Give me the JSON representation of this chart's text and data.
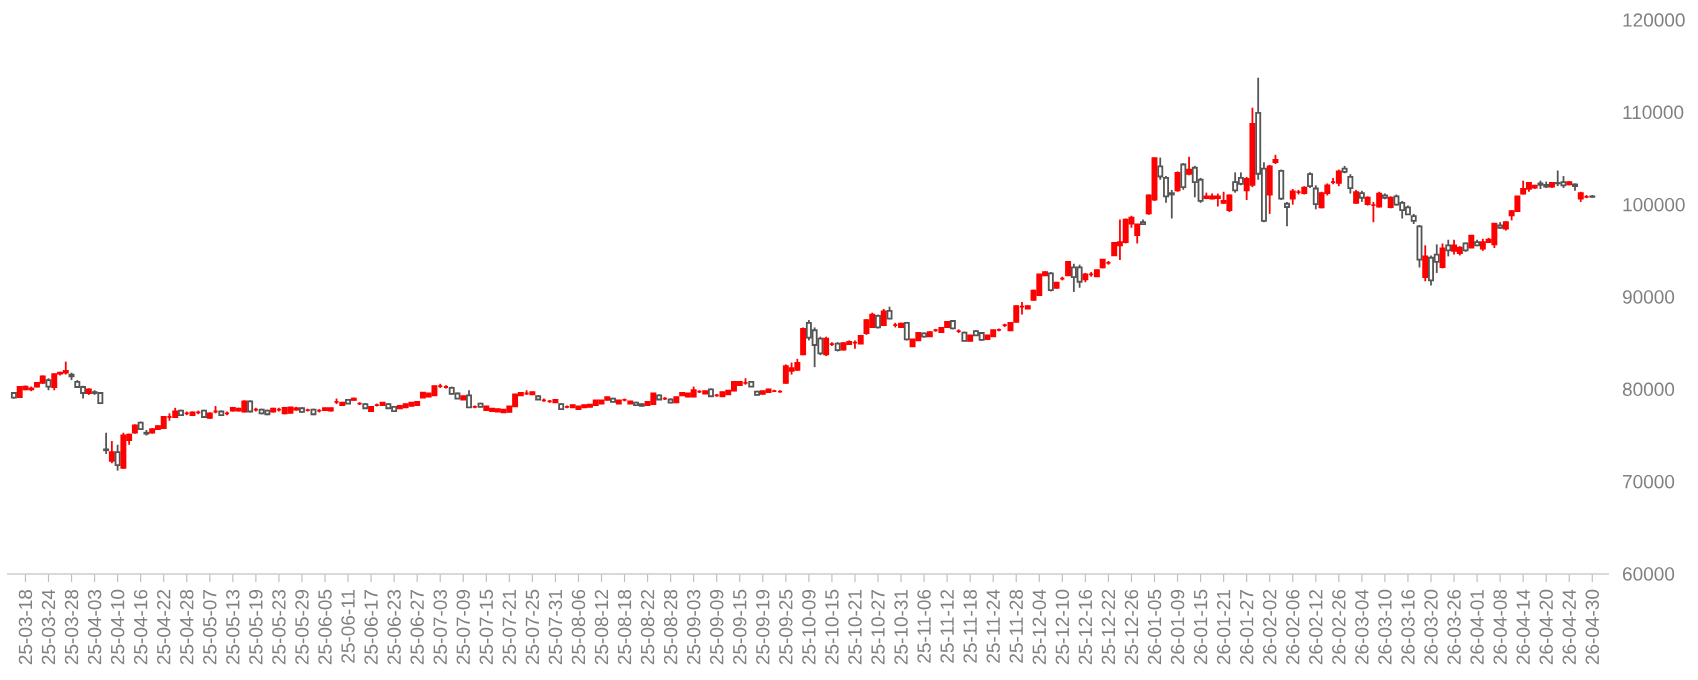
{
  "chart_data": {
    "type": "candlestick",
    "categories": [
      null,
      null,
      "25-03-18",
      null,
      null,
      null,
      "25-03-24",
      null,
      null,
      null,
      "25-03-28",
      null,
      null,
      null,
      "25-04-03",
      null,
      null,
      null,
      "25-04-10",
      null,
      null,
      null,
      "25-04-16",
      null,
      null,
      null,
      "25-04-22",
      null,
      null,
      null,
      "25-04-28",
      null,
      null,
      null,
      "25-05-07",
      null,
      null,
      null,
      "25-05-13",
      null,
      null,
      null,
      "25-05-19",
      null,
      null,
      null,
      "25-05-23",
      null,
      null,
      null,
      "25-05-29",
      null,
      null,
      null,
      "25-06-05",
      null,
      null,
      null,
      "25-06-11",
      null,
      null,
      null,
      "25-06-17",
      null,
      null,
      null,
      "25-06-23",
      null,
      null,
      null,
      "25-06-27",
      null,
      null,
      null,
      "25-07-03",
      null,
      null,
      null,
      "25-07-09",
      null,
      null,
      null,
      "25-07-15",
      null,
      null,
      null,
      "25-07-21",
      null,
      null,
      null,
      "25-07-25",
      null,
      null,
      null,
      "25-07-31",
      null,
      null,
      null,
      "25-08-06",
      null,
      null,
      null,
      "25-08-12",
      null,
      null,
      null,
      "25-08-18",
      null,
      null,
      null,
      "25-08-22",
      null,
      null,
      null,
      "25-08-28",
      null,
      null,
      null,
      "25-09-03",
      null,
      null,
      null,
      "25-09-09",
      null,
      null,
      null,
      "25-09-15",
      null,
      null,
      null,
      "25-09-19",
      null,
      null,
      null,
      "25-09-25",
      null,
      null,
      null,
      "25-10-09",
      null,
      null,
      null,
      "25-10-15",
      null,
      null,
      null,
      "25-10-21",
      null,
      null,
      null,
      "25-10-27",
      null,
      null,
      null,
      "25-10-31",
      null,
      null,
      null,
      "25-11-06",
      null,
      null,
      null,
      "25-11-12",
      null,
      null,
      null,
      "25-11-18",
      null,
      null,
      null,
      "25-11-24",
      null,
      null,
      null,
      "25-11-28",
      null,
      null,
      null,
      "25-12-04",
      null,
      null,
      null,
      "25-12-10",
      null,
      null,
      null,
      "25-12-16",
      null,
      null,
      null,
      "25-12-22",
      null,
      null,
      null,
      "25-12-26",
      null,
      null,
      null,
      "26-01-05",
      null,
      null,
      null,
      "26-01-09",
      null,
      null,
      null,
      "26-01-15",
      null,
      null,
      null,
      "26-01-21",
      null,
      null,
      null,
      "26-01-27",
      null,
      null,
      null,
      "26-02-02",
      null,
      null,
      null,
      "26-02-06",
      null,
      null,
      null,
      "26-02-12",
      null,
      null,
      null,
      "26-02-26",
      null,
      null,
      null,
      "26-03-04",
      null,
      null,
      null,
      "26-03-10",
      null,
      null,
      null,
      "26-03-16",
      null,
      null,
      null,
      "26-03-20",
      null,
      null,
      null,
      "26-03-26",
      null,
      null,
      null,
      "26-04-01",
      null,
      null,
      null,
      "26-04-08",
      null,
      null,
      null,
      "26-04-14",
      null,
      null,
      null,
      "26-04-20",
      null,
      null,
      null,
      "26-04-24",
      null,
      null,
      null,
      "26-04-30"
    ],
    "ohlc": [
      [
        79600,
        79700,
        79000,
        79100
      ],
      [
        79150,
        80300,
        79100,
        80250
      ],
      [
        80000,
        80400,
        79900,
        80300
      ],
      [
        80000,
        80300,
        79800,
        80100
      ],
      [
        80300,
        80800,
        80200,
        80700
      ],
      [
        80700,
        81500,
        80600,
        81400
      ],
      [
        81000,
        81200,
        79900,
        80300
      ],
      [
        80250,
        81700,
        79900,
        81650
      ],
      [
        81700,
        81900,
        81500,
        81800
      ],
      [
        81800,
        83000,
        81600,
        82000
      ],
      [
        81600,
        81800,
        81000,
        81400
      ],
      [
        80800,
        81000,
        80200,
        80250
      ],
      [
        80250,
        80400,
        79000,
        79600
      ],
      [
        79600,
        80100,
        79400,
        80000
      ],
      [
        79700,
        79900,
        79400,
        79600
      ],
      [
        79600,
        79700,
        78400,
        78500
      ],
      [
        73500,
        75300,
        73000,
        73400
      ],
      [
        72250,
        74400,
        72000,
        73200
      ],
      [
        73200,
        74000,
        71200,
        71800
      ],
      [
        71500,
        75300,
        71400,
        75000
      ],
      [
        74500,
        75200,
        74000,
        75100
      ],
      [
        75300,
        76200,
        75200,
        76100
      ],
      [
        76400,
        76500,
        75600,
        75700
      ],
      [
        75300,
        75600,
        75000,
        75200
      ],
      [
        75300,
        75800,
        75200,
        75700
      ],
      [
        75700,
        76100,
        75600,
        76000
      ],
      [
        75800,
        77100,
        75700,
        77000
      ],
      [
        77000,
        77400,
        76600,
        77000
      ],
      [
        77000,
        78000,
        76900,
        77600
      ],
      [
        77700,
        77800,
        77100,
        77200
      ],
      [
        77400,
        77600,
        77200,
        77400
      ],
      [
        77200,
        77600,
        77100,
        77500
      ],
      [
        77500,
        77700,
        77300,
        77500
      ],
      [
        77700,
        77800,
        76900,
        77000
      ],
      [
        76900,
        77500,
        76800,
        77400
      ],
      [
        77600,
        78200,
        77400,
        77600
      ],
      [
        77600,
        77700,
        77100,
        77200
      ],
      [
        77400,
        77600,
        77200,
        77400
      ],
      [
        77700,
        78100,
        77600,
        78000
      ],
      [
        77700,
        78000,
        77600,
        77900
      ],
      [
        77600,
        78800,
        77500,
        78700
      ],
      [
        78700,
        78800,
        77500,
        77600
      ],
      [
        77800,
        78000,
        77600,
        77800
      ],
      [
        77800,
        77900,
        77300,
        77400
      ],
      [
        77700,
        77800,
        77200,
        77300
      ],
      [
        77600,
        78000,
        77500,
        77900
      ],
      [
        77800,
        78000,
        77600,
        77800
      ],
      [
        77400,
        78100,
        77300,
        78000
      ],
      [
        77460,
        78100,
        77400,
        78040
      ],
      [
        77800,
        78100,
        77700,
        77950
      ],
      [
        77950,
        78050,
        77500,
        77550
      ],
      [
        77750,
        77900,
        77600,
        77750
      ],
      [
        77800,
        77900,
        77200,
        77300
      ],
      [
        77700,
        77850,
        77500,
        77700
      ],
      [
        77750,
        78000,
        77700,
        77950
      ],
      [
        77700,
        78000,
        77600,
        77950
      ],
      [
        78650,
        79000,
        78400,
        78650
      ],
      [
        78300,
        78600,
        78200,
        78550
      ],
      [
        78850,
        78950,
        78400,
        78450
      ],
      [
        78850,
        79100,
        78800,
        79000
      ],
      [
        78450,
        78600,
        78300,
        78450
      ],
      [
        78400,
        78500,
        77900,
        77950
      ],
      [
        77650,
        78150,
        77600,
        78100
      ],
      [
        78300,
        78450,
        78150,
        78300
      ],
      [
        78300,
        78600,
        78250,
        78550
      ],
      [
        78400,
        78500,
        77900,
        77950
      ],
      [
        78100,
        78200,
        77600,
        77650
      ],
      [
        77950,
        78250,
        77900,
        78200
      ],
      [
        78050,
        78450,
        78000,
        78400
      ],
      [
        78200,
        78600,
        78150,
        78550
      ],
      [
        78300,
        78700,
        78250,
        78650
      ],
      [
        79100,
        79700,
        79050,
        79650
      ],
      [
        79200,
        79600,
        79150,
        79550
      ],
      [
        79350,
        80400,
        79300,
        80350
      ],
      [
        80350,
        80600,
        80150,
        80350
      ],
      [
        80250,
        80450,
        80100,
        80250
      ],
      [
        80150,
        80300,
        79450,
        79500
      ],
      [
        79550,
        79650,
        78950,
        79000
      ],
      [
        78900,
        79300,
        78850,
        79250
      ],
      [
        79350,
        79900,
        78000,
        78050
      ],
      [
        78100,
        78250,
        77950,
        78100
      ],
      [
        78450,
        78550,
        78050,
        78100
      ],
      [
        77750,
        78200,
        77700,
        78150
      ],
      [
        77650,
        77950,
        77600,
        77900
      ],
      [
        77600,
        77900,
        77550,
        77850
      ],
      [
        77500,
        77850,
        77450,
        77800
      ],
      [
        77550,
        78200,
        77500,
        78150
      ],
      [
        78150,
        79500,
        78100,
        79450
      ],
      [
        79350,
        79650,
        79300,
        79600
      ],
      [
        79550,
        79900,
        79400,
        79550
      ],
      [
        79450,
        79750,
        79400,
        79700
      ],
      [
        79250,
        79350,
        78850,
        78900
      ],
      [
        78800,
        79000,
        78650,
        78800
      ],
      [
        78700,
        78850,
        78550,
        78700
      ],
      [
        78600,
        78900,
        78550,
        78850
      ],
      [
        78400,
        78500,
        77800,
        77850
      ],
      [
        78100,
        78250,
        77950,
        78100
      ],
      [
        78050,
        78350,
        78000,
        78300
      ],
      [
        77850,
        78200,
        77800,
        78150
      ],
      [
        78050,
        78350,
        78000,
        78300
      ],
      [
        78100,
        78400,
        78050,
        78350
      ],
      [
        78300,
        78850,
        78250,
        78800
      ],
      [
        78450,
        78850,
        78400,
        78800
      ],
      [
        78850,
        79200,
        78800,
        79150
      ],
      [
        79000,
        79100,
        78600,
        78650
      ],
      [
        78450,
        78850,
        78400,
        78800
      ],
      [
        78850,
        79000,
        78700,
        78850
      ],
      [
        78450,
        78750,
        78400,
        78700
      ],
      [
        78550,
        78650,
        78250,
        78300
      ],
      [
        78400,
        78500,
        78150,
        78200
      ],
      [
        78300,
        78700,
        78250,
        78650
      ],
      [
        78400,
        79600,
        78350,
        79550
      ],
      [
        79350,
        79450,
        78850,
        78900
      ],
      [
        79000,
        79150,
        78850,
        79000
      ],
      [
        78900,
        79000,
        78500,
        78550
      ],
      [
        78600,
        79200,
        78550,
        79150
      ],
      [
        79350,
        79650,
        79300,
        79600
      ],
      [
        79200,
        79600,
        79150,
        79550
      ],
      [
        79200,
        80300,
        79150,
        79900
      ],
      [
        79750,
        79900,
        79600,
        79750
      ],
      [
        79550,
        79850,
        79500,
        79800
      ],
      [
        80000,
        80100,
        79200,
        79250
      ],
      [
        79350,
        79500,
        79200,
        79350
      ],
      [
        79250,
        79750,
        79200,
        79700
      ],
      [
        79450,
        79900,
        79400,
        79850
      ],
      [
        79850,
        80850,
        79800,
        80800
      ],
      [
        80450,
        80850,
        80400,
        80800
      ],
      [
        80700,
        81200,
        80500,
        80700
      ],
      [
        80800,
        80900,
        80250,
        80300
      ],
      [
        79750,
        79850,
        79350,
        79400
      ],
      [
        79500,
        79850,
        79450,
        79800
      ],
      [
        79700,
        80050,
        79650,
        80000
      ],
      [
        79800,
        79950,
        79700,
        79800
      ],
      [
        79750,
        79900,
        79650,
        79750
      ],
      [
        80700,
        82700,
        80600,
        82500
      ],
      [
        82000,
        82900,
        81600,
        82300
      ],
      [
        82100,
        83300,
        82000,
        82850
      ],
      [
        83800,
        86700,
        83700,
        86550
      ],
      [
        87200,
        87500,
        85300,
        85600
      ],
      [
        86400,
        86700,
        82400,
        84800
      ],
      [
        85500,
        85700,
        83700,
        83900
      ],
      [
        83800,
        85700,
        83600,
        85500
      ],
      [
        84900,
        85100,
        84700,
        84900
      ],
      [
        84950,
        85100,
        84100,
        84250
      ],
      [
        84300,
        85100,
        84200,
        85000
      ],
      [
        84900,
        85300,
        84800,
        85150
      ],
      [
        85050,
        85300,
        84400,
        85050
      ],
      [
        84950,
        85900,
        84900,
        85800
      ],
      [
        86100,
        87600,
        85900,
        87500
      ],
      [
        86750,
        88300,
        86700,
        88100
      ],
      [
        87950,
        88100,
        86600,
        86700
      ],
      [
        86950,
        88700,
        86900,
        88450
      ],
      [
        88500,
        88950,
        87600,
        87650
      ],
      [
        86950,
        87200,
        86700,
        86950
      ],
      [
        86750,
        87200,
        86700,
        87100
      ],
      [
        87200,
        87300,
        85300,
        85400
      ],
      [
        84650,
        85450,
        84600,
        85400
      ],
      [
        85300,
        86200,
        85250,
        86100
      ],
      [
        86050,
        86150,
        85600,
        85700
      ],
      [
        85750,
        86300,
        85700,
        86200
      ],
      [
        86400,
        86550,
        86250,
        86400
      ],
      [
        86200,
        86700,
        86150,
        86650
      ],
      [
        86750,
        87400,
        86700,
        87300
      ],
      [
        87400,
        87500,
        86500,
        86600
      ],
      [
        86300,
        86500,
        86100,
        86300
      ],
      [
        86150,
        86250,
        85200,
        85250
      ],
      [
        85250,
        85900,
        85200,
        85850
      ],
      [
        86300,
        86400,
        85800,
        85850
      ],
      [
        86100,
        86200,
        85300,
        85350
      ],
      [
        85450,
        85900,
        85400,
        85850
      ],
      [
        85750,
        86450,
        85700,
        86400
      ],
      [
        86450,
        86600,
        86300,
        86450
      ],
      [
        86950,
        87100,
        86750,
        86950
      ],
      [
        86400,
        87250,
        86350,
        87200
      ],
      [
        87300,
        89100,
        87250,
        89000
      ],
      [
        88950,
        89450,
        88100,
        88950
      ],
      [
        88750,
        89100,
        88700,
        89000
      ],
      [
        89700,
        90800,
        89600,
        90700
      ],
      [
        90200,
        92500,
        90100,
        92450
      ],
      [
        92350,
        92800,
        92300,
        92700
      ],
      [
        92550,
        92700,
        90600,
        90750
      ],
      [
        91000,
        91600,
        90900,
        91550
      ],
      [
        92000,
        92200,
        91800,
        92000
      ],
      [
        92350,
        93900,
        92300,
        93800
      ],
      [
        93200,
        93600,
        90550,
        92150
      ],
      [
        93200,
        93500,
        91000,
        91650
      ],
      [
        91900,
        92600,
        91600,
        92450
      ],
      [
        92450,
        92700,
        92200,
        92450
      ],
      [
        92250,
        92950,
        92200,
        92900
      ],
      [
        93200,
        94100,
        93100,
        94050
      ],
      [
        93700,
        93900,
        93500,
        93700
      ],
      [
        94500,
        95900,
        94450,
        95850
      ],
      [
        95600,
        98400,
        94000,
        95950
      ],
      [
        95950,
        98500,
        95800,
        98380
      ],
      [
        97950,
        98800,
        97500,
        98600
      ],
      [
        96700,
        97900,
        95800,
        97850
      ],
      [
        98100,
        98400,
        97800,
        97900
      ],
      [
        99050,
        101100,
        98900,
        101000
      ],
      [
        100550,
        105100,
        100400,
        105050
      ],
      [
        104150,
        105100,
        102700,
        103050
      ],
      [
        102900,
        103100,
        100200,
        100900
      ],
      [
        101250,
        101600,
        98500,
        101100
      ],
      [
        101550,
        103600,
        101400,
        103450
      ],
      [
        104350,
        104500,
        101600,
        101900
      ],
      [
        103350,
        105200,
        103200,
        103800
      ],
      [
        104000,
        104200,
        100800,
        102450
      ],
      [
        102700,
        102900,
        100200,
        100400
      ],
      [
        100700,
        101300,
        100600,
        100900
      ],
      [
        100650,
        101200,
        100600,
        100900
      ],
      [
        100700,
        101200,
        99800,
        100900
      ],
      [
        100200,
        101400,
        100100,
        100400
      ],
      [
        99400,
        101100,
        99200,
        101000
      ],
      [
        102450,
        103500,
        101300,
        101550
      ],
      [
        102900,
        103500,
        102100,
        102250
      ],
      [
        101550,
        103000,
        100500,
        102800
      ],
      [
        102150,
        110500,
        101900,
        108750
      ],
      [
        109950,
        113750,
        102700,
        103350
      ],
      [
        103900,
        104600,
        98100,
        98250
      ],
      [
        101100,
        104300,
        99000,
        104150
      ],
      [
        104600,
        105400,
        104400,
        104850
      ],
      [
        103650,
        103800,
        100500,
        100650
      ],
      [
        100100,
        100300,
        97650,
        99750
      ],
      [
        100650,
        101700,
        100000,
        101450
      ],
      [
        101350,
        101600,
        101100,
        101350
      ],
      [
        101250,
        102000,
        101100,
        101850
      ],
      [
        103300,
        103500,
        101800,
        102000
      ],
      [
        101750,
        102100,
        99500,
        100050
      ],
      [
        99700,
        101400,
        99600,
        101250
      ],
      [
        101250,
        102300,
        101000,
        102100
      ],
      [
        102450,
        102900,
        102200,
        102450
      ],
      [
        102350,
        103800,
        102000,
        103600
      ],
      [
        103900,
        104200,
        103400,
        103550
      ],
      [
        103000,
        103300,
        101200,
        101800
      ],
      [
        100200,
        101600,
        100100,
        101350
      ],
      [
        101250,
        101500,
        100300,
        100750
      ],
      [
        100050,
        100900,
        99900,
        100750
      ],
      [
        99950,
        100300,
        98100,
        99950
      ],
      [
        99800,
        101400,
        99700,
        101200
      ],
      [
        101000,
        101200,
        100600,
        100750
      ],
      [
        99750,
        100900,
        99600,
        100750
      ],
      [
        100900,
        101100,
        99900,
        100000
      ],
      [
        100200,
        100400,
        98500,
        99400
      ],
      [
        99700,
        99900,
        98900,
        98950
      ],
      [
        98750,
        99000,
        97900,
        98250
      ],
      [
        97650,
        97800,
        93200,
        94050
      ],
      [
        92150,
        95600,
        91700,
        94400
      ],
      [
        94250,
        94500,
        91250,
        91800
      ],
      [
        94600,
        95700,
        92600,
        93800
      ],
      [
        93250,
        95800,
        93100,
        95250
      ],
      [
        95600,
        96200,
        94400,
        95050
      ],
      [
        95000,
        96200,
        94600,
        95600
      ],
      [
        94750,
        95500,
        94500,
        95350
      ],
      [
        95800,
        95900,
        94900,
        95050
      ],
      [
        95350,
        96700,
        95300,
        96650
      ],
      [
        95950,
        96200,
        95500,
        95600
      ],
      [
        95250,
        96300,
        95000,
        95950
      ],
      [
        95950,
        96400,
        95900,
        96200
      ],
      [
        95700,
        98000,
        95300,
        97950
      ],
      [
        97750,
        98100,
        97400,
        97500
      ],
      [
        97400,
        98200,
        97200,
        98100
      ],
      [
        98850,
        99400,
        98300,
        99300
      ],
      [
        99300,
        100950,
        99200,
        100900
      ],
      [
        101200,
        102600,
        101100,
        101700
      ],
      [
        101700,
        102450,
        101400,
        102350
      ],
      [
        101850,
        102150,
        101700,
        102050
      ],
      [
        102300,
        102600,
        101700,
        102150
      ],
      [
        102150,
        102500,
        101800,
        101950
      ],
      [
        101950,
        102450,
        101800,
        102350
      ],
      [
        102350,
        103700,
        102000,
        102300
      ],
      [
        102450,
        103100,
        101800,
        102100
      ],
      [
        102200,
        102550,
        102100,
        102450
      ],
      [
        102200,
        102300,
        101500,
        102000
      ],
      [
        100650,
        101400,
        100300,
        101250
      ],
      [
        100850,
        101050,
        100700,
        100850
      ],
      [
        100900,
        101050,
        100750,
        100850
      ]
    ],
    "ylim": [
      60000,
      120000
    ],
    "yticks": [
      60000,
      70000,
      80000,
      90000,
      100000,
      110000,
      120000
    ]
  }
}
